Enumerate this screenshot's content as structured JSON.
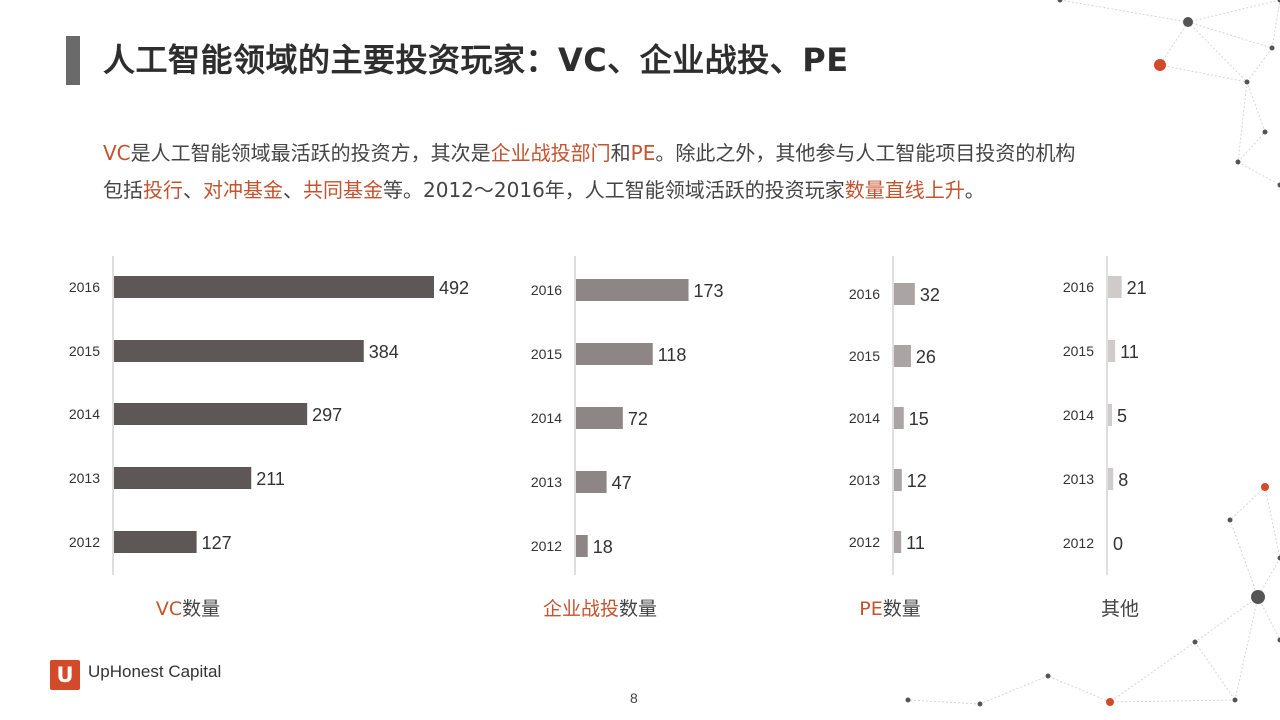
{
  "slide": {
    "title": "人工智能领域的主要投资玩家：VC、企业战投、PE",
    "intro_line1": [
      {
        "t": "VC",
        "hl": true
      },
      {
        "t": "是人工智能领域最活跃的投资方，其次是",
        "hl": false
      },
      {
        "t": "企业战投部门",
        "hl": true
      },
      {
        "t": "和",
        "hl": false
      },
      {
        "t": "PE",
        "hl": true
      },
      {
        "t": "。除此之外，其他参与人工智能项目投资的机构",
        "hl": false
      }
    ],
    "intro_line2": [
      {
        "t": "包括",
        "hl": false
      },
      {
        "t": "投行",
        "hl": true
      },
      {
        "t": "、",
        "hl": false
      },
      {
        "t": "对冲基金",
        "hl": true
      },
      {
        "t": "、",
        "hl": false
      },
      {
        "t": "共同基金",
        "hl": true
      },
      {
        "t": "等。2012～2016年，人工智能领域活跃的投资玩家",
        "hl": false
      },
      {
        "t": "数量直线上升",
        "hl": true
      },
      {
        "t": "。",
        "hl": false
      }
    ],
    "brand_logo": "U",
    "brand_name": "UpHonest Capital",
    "page_number": "8"
  },
  "colors": {
    "accent": "#c4532f",
    "vc_bar": "#5d5757",
    "corp_bar": "#8e8686",
    "pe_bar": "#aaa4a4",
    "other_bar": "#cfcbcb",
    "axis": "#bfbfbf"
  },
  "chart_data": [
    {
      "type": "bar",
      "orientation": "horizontal",
      "categories": [
        "2016",
        "2015",
        "2014",
        "2013",
        "2012"
      ],
      "values": [
        492,
        384,
        297,
        211,
        127
      ],
      "xlabel_parts": [
        {
          "t": "VC",
          "hl": true
        },
        {
          "t": "数量",
          "hl": false
        }
      ],
      "xlim": [
        0,
        492
      ],
      "color_key": "vc_bar"
    },
    {
      "type": "bar",
      "orientation": "horizontal",
      "categories": [
        "2016",
        "2015",
        "2014",
        "2013",
        "2012"
      ],
      "values": [
        173,
        118,
        72,
        47,
        18
      ],
      "xlabel_parts": [
        {
          "t": "企业战投",
          "hl": true
        },
        {
          "t": "数量",
          "hl": false
        }
      ],
      "xlim": [
        0,
        492
      ],
      "color_key": "corp_bar"
    },
    {
      "type": "bar",
      "orientation": "horizontal",
      "categories": [
        "2016",
        "2015",
        "2014",
        "2013",
        "2012"
      ],
      "values": [
        32,
        26,
        15,
        12,
        11
      ],
      "xlabel_parts": [
        {
          "t": "PE",
          "hl": true
        },
        {
          "t": "数量",
          "hl": false
        }
      ],
      "xlim": [
        0,
        492
      ],
      "color_key": "pe_bar"
    },
    {
      "type": "bar",
      "orientation": "horizontal",
      "categories": [
        "2016",
        "2015",
        "2014",
        "2013",
        "2012"
      ],
      "values": [
        21,
        11,
        5,
        8,
        0
      ],
      "xlabel_parts": [
        {
          "t": "其他",
          "hl": false
        }
      ],
      "xlim": [
        0,
        492
      ],
      "color_key": "other_bar"
    }
  ]
}
